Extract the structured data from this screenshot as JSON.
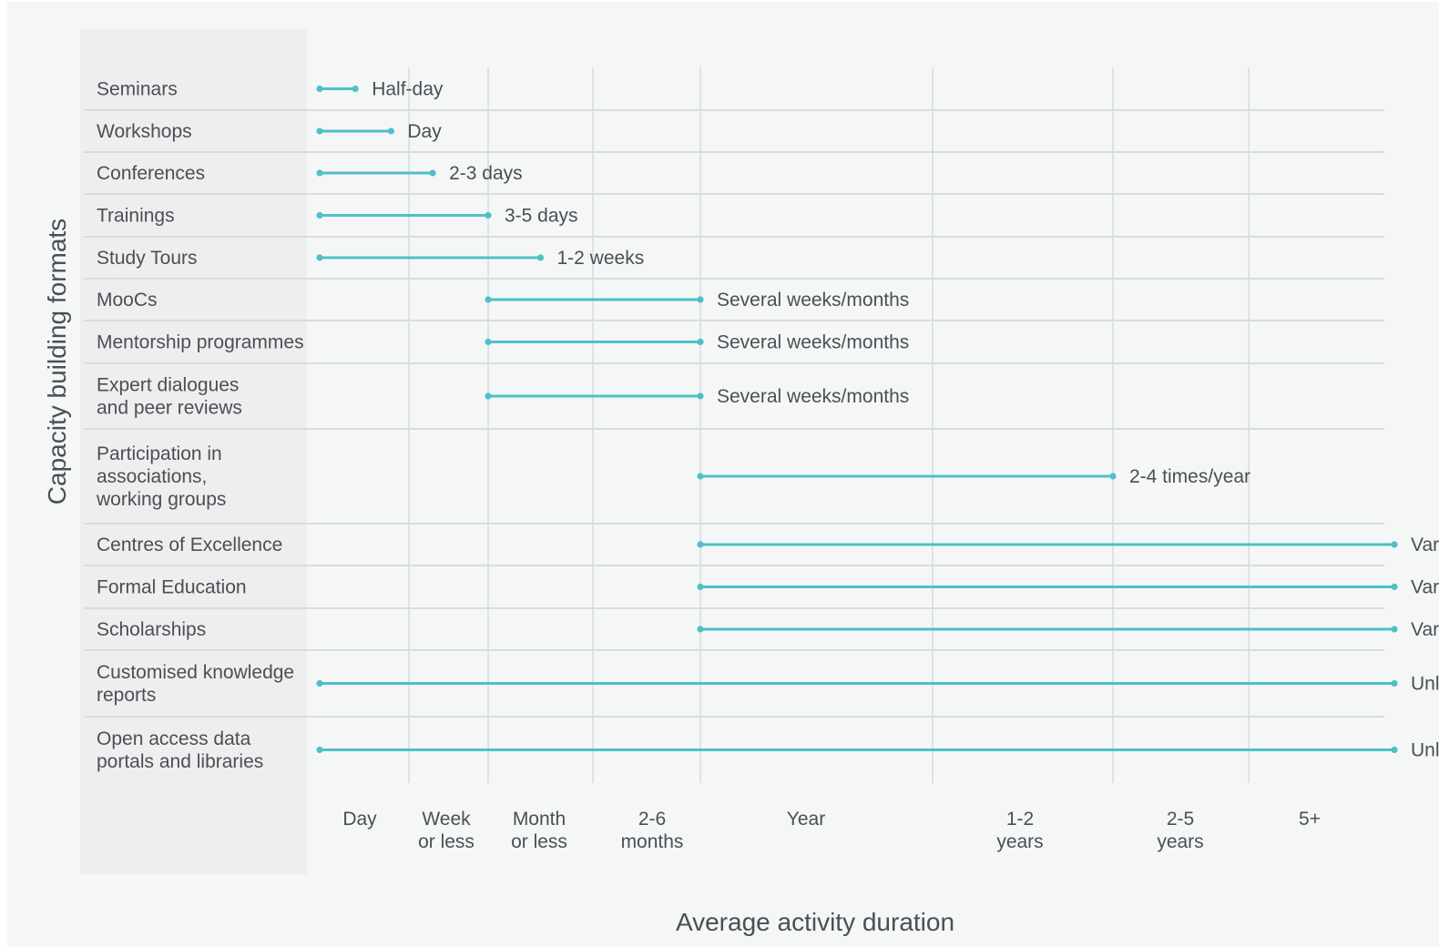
{
  "chart_data": {
    "type": "range-bar",
    "ylabel": "Capacity building formats",
    "xlabel": "Average activity duration",
    "x_categories": [
      [
        "Day"
      ],
      [
        "Week",
        "or less"
      ],
      [
        "Month",
        "or less"
      ],
      [
        "2-6",
        "months"
      ],
      [
        "Year"
      ],
      [
        "1-2",
        "years"
      ],
      [
        "2-5",
        "years"
      ],
      [
        "5+"
      ]
    ],
    "rows": [
      {
        "label": [
          "Seminars"
        ],
        "start": 0.0,
        "end": 0.4,
        "duration": "Half-day"
      },
      {
        "label": [
          "Workshops"
        ],
        "start": 0.0,
        "end": 0.8,
        "duration": "Day"
      },
      {
        "label": [
          "Conferences"
        ],
        "start": 0.0,
        "end": 1.3,
        "duration": "2-3 days"
      },
      {
        "label": [
          "Trainings"
        ],
        "start": 0.0,
        "end": 2.0,
        "duration": "3-5 days"
      },
      {
        "label": [
          "Study Tours"
        ],
        "start": 0.0,
        "end": 2.5,
        "duration": "1-2 weeks"
      },
      {
        "label": [
          "MooCs"
        ],
        "start": 2.0,
        "end": 4.0,
        "duration": "Several weeks/months"
      },
      {
        "label": [
          "Mentorship programmes"
        ],
        "start": 2.0,
        "end": 4.0,
        "duration": "Several weeks/months"
      },
      {
        "label": [
          "Expert dialogues",
          "and peer reviews"
        ],
        "start": 2.0,
        "end": 4.0,
        "duration": "Several weeks/months"
      },
      {
        "label": [
          "Participation in",
          "associations,",
          "working groups"
        ],
        "start": 4.0,
        "end": 6.0,
        "duration": "2-4 times/year"
      },
      {
        "label": [
          "Centres of Excellence"
        ],
        "start": 4.0,
        "end": 9.0,
        "duration": "Varies"
      },
      {
        "label": [
          "Formal Education"
        ],
        "start": 4.0,
        "end": 9.0,
        "duration": "Varies"
      },
      {
        "label": [
          "Scholarships"
        ],
        "start": 4.0,
        "end": 9.0,
        "duration": "Varies"
      },
      {
        "label": [
          "Customised knowledge",
          "reports"
        ],
        "start": 0.0,
        "end": 9.0,
        "duration": "Unlimited"
      },
      {
        "label": [
          "Open access data",
          "portals and libraries"
        ],
        "start": 0.0,
        "end": 9.0,
        "duration": "Unlimited"
      }
    ],
    "grid": true,
    "colors": {
      "bar": "#4fc0c6",
      "grid": "#d8dcde",
      "background": "#f5f7f7",
      "label_panel": "#eeeeef",
      "text": "#4a4f56",
      "title_strip": "#1f2fc4"
    }
  }
}
